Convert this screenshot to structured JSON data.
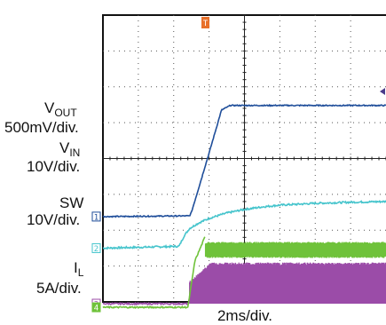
{
  "chart_data": {
    "type": "line",
    "subtype": "oscilloscope-capture",
    "grid": true,
    "divisions": {
      "x": 8,
      "y": 8
    },
    "trigger_marker": "T",
    "timebase_label": "2ms/div.",
    "time_unit": "div",
    "x_range": [
      0,
      8
    ],
    "series": [
      {
        "id": "vout",
        "channel": "1",
        "name_main": "V",
        "name_sub": "OUT",
        "scale_label": "500mV/div.",
        "color": "#1f4e9a",
        "ground_div": 2.38,
        "x": [
          0,
          2.45,
          2.5,
          3.0,
          3.35,
          3.6,
          8
        ],
        "div": [
          2.38,
          2.4,
          2.5,
          4.15,
          5.35,
          5.48,
          5.48
        ]
      },
      {
        "id": "vin",
        "channel": "2",
        "name_main": "V",
        "name_sub": "IN",
        "scale_label": "10V/div.",
        "color": "#45c4cc",
        "ground_div": 1.5,
        "x": [
          0,
          2.15,
          2.3,
          2.45,
          2.7,
          3.0,
          3.5,
          4.0,
          4.5,
          5.0,
          6.0,
          7.0,
          8.0
        ],
        "div": [
          1.5,
          1.55,
          1.85,
          2.05,
          2.2,
          2.33,
          2.48,
          2.58,
          2.65,
          2.7,
          2.75,
          2.78,
          2.8
        ]
      },
      {
        "id": "sw",
        "channel": "3",
        "name_main": "SW",
        "name_sub": "",
        "scale_label": "10V/div.",
        "color": "#9b4ca8",
        "ground_div": -0.05,
        "switching_start_div": 2.45,
        "envelope_low_div": -0.05,
        "envelope_high_div": 1.1
      },
      {
        "id": "il",
        "channel": "4",
        "name_main": "I",
        "name_sub": "L",
        "scale_label": "5A/div.",
        "color": "#6fc23a",
        "ground_div": -0.15,
        "x": [
          0,
          2.4,
          2.6,
          2.9,
          2.9,
          8
        ],
        "div": [
          -0.15,
          -0.15,
          1.15,
          1.85,
          1.45,
          1.45
        ],
        "ripple_div": 0.35
      }
    ]
  }
}
